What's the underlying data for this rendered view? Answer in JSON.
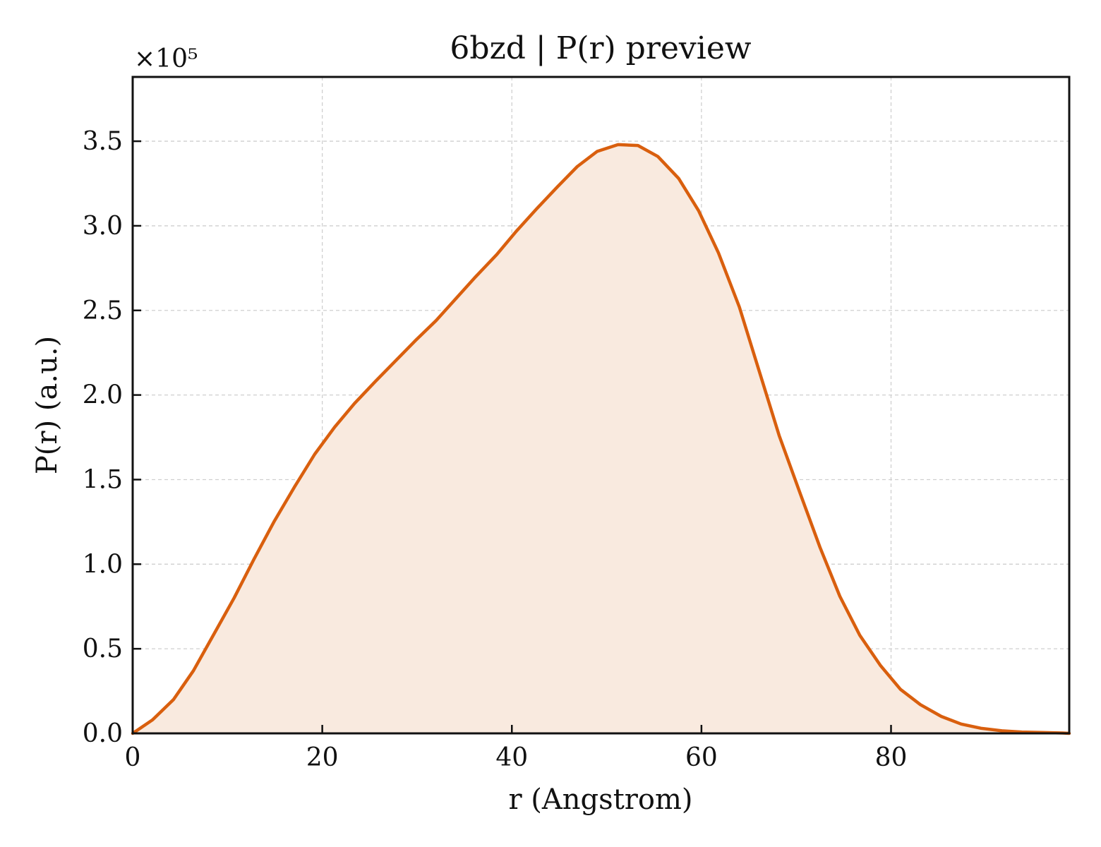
{
  "chart_data": {
    "type": "area",
    "title": "6bzd | P(r) preview",
    "xlabel": "r (Angstrom)",
    "ylabel": "P(r) (a.u.)",
    "y_scale_label": "×10⁵",
    "xlim": [
      0,
      98.8
    ],
    "ylim": [
      0,
      3.88
    ],
    "x_ticks": [
      0,
      20,
      40,
      60,
      80
    ],
    "x_tick_labels": [
      "0",
      "20",
      "40",
      "60",
      "80"
    ],
    "y_ticks": [
      0,
      0.5,
      1.0,
      1.5,
      2.0,
      2.5,
      3.0,
      3.5
    ],
    "y_tick_labels": [
      "0.0",
      "0.5",
      "1.0",
      "1.5",
      "2.0",
      "2.5",
      "3.0",
      "3.5"
    ],
    "grid": true,
    "line_color": "#d95f0e",
    "fill_color": "#f9eadf",
    "series": [
      {
        "x": [
          0.0,
          2.1,
          4.3,
          6.4,
          8.5,
          10.7,
          12.8,
          14.9,
          17.1,
          19.2,
          21.3,
          23.4,
          25.6,
          27.7,
          29.8,
          32.0,
          34.1,
          36.2,
          38.4,
          40.5,
          42.6,
          44.8,
          46.9,
          49.0,
          51.2,
          53.3,
          55.4,
          57.6,
          59.7,
          61.8,
          64.0,
          66.1,
          68.2,
          70.4,
          72.5,
          74.6,
          76.7,
          78.9,
          81.0,
          83.1,
          85.3,
          87.4,
          89.5,
          91.7,
          93.8,
          95.9,
          98.1,
          98.8
        ],
        "y": [
          0.0,
          0.08,
          0.2,
          0.37,
          0.58,
          0.8,
          1.03,
          1.25,
          1.46,
          1.65,
          1.81,
          1.95,
          2.08,
          2.2,
          2.32,
          2.44,
          2.57,
          2.7,
          2.83,
          2.97,
          3.1,
          3.23,
          3.35,
          3.44,
          3.48,
          3.475,
          3.41,
          3.28,
          3.09,
          2.84,
          2.52,
          2.14,
          1.76,
          1.42,
          1.1,
          0.81,
          0.58,
          0.4,
          0.26,
          0.17,
          0.1,
          0.055,
          0.03,
          0.015,
          0.008,
          0.005,
          0.002,
          0.0
        ]
      }
    ]
  }
}
